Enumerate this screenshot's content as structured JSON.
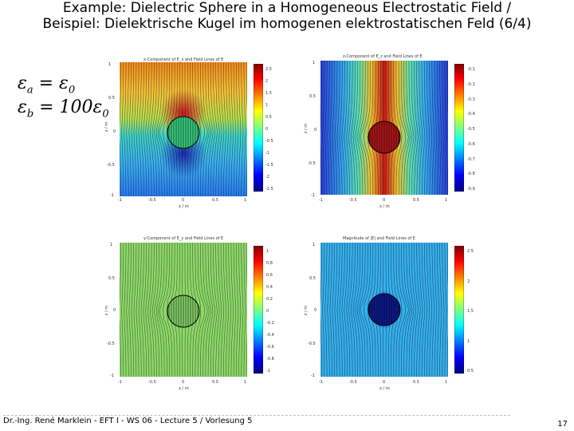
{
  "slide": {
    "title_line1": "Example: Dielectric Sphere in a Homogeneous Electrostatic Field /",
    "title_line2": "Beispiel: Dielektrische Kugel im homogenen elektrostatischen Feld (6/4)",
    "eq_a": "ε",
    "eq_a_sub": "a",
    "eq_a_rhs": " = ε",
    "eq_a_rhs_sub": "0",
    "eq_b": "ε",
    "eq_b_sub": "b",
    "eq_b_rhs": " = 100ε",
    "eq_b_rhs_sub": "0",
    "footer": "Dr.-Ing. René Marklein - EFT I - WS 06 - Lecture 5 / Vorlesung 5",
    "page_number": "17"
  },
  "panels": [
    {
      "id": "tl",
      "title": "x-Component of E_x and Field Lines of E",
      "x_ticks": [
        "-1",
        "-0.5",
        "0",
        "0.5",
        "1"
      ],
      "y_ticks": [
        "1",
        "0.5",
        "0",
        "-0.5",
        "-1"
      ],
      "x_label": "x / m",
      "y_label": "z / m",
      "cbar_ticks": [
        "2.5",
        "2",
        "1.5",
        "1",
        "0.5",
        "0",
        "-0.5",
        "-1",
        "-1.5",
        "-2",
        "-2.5"
      ],
      "colormap": "jet"
    },
    {
      "id": "tr",
      "title": "z-Component of E_z and Field Lines of E",
      "x_ticks": [
        "-1",
        "-0.5",
        "0",
        "0.5",
        "1"
      ],
      "y_ticks": [
        "1",
        "0.5",
        "0",
        "-0.5",
        "-1"
      ],
      "x_label": "x / m",
      "y_label": "z / m",
      "cbar_ticks": [
        "-0.1",
        "-0.2",
        "-0.3",
        "-0.4",
        "-0.5",
        "-0.6",
        "-0.7",
        "-0.8",
        "-0.9"
      ],
      "colormap": "jet"
    },
    {
      "id": "bl",
      "title": "y-Component of E_y and Field Lines of E",
      "x_ticks": [
        "-1",
        "-0.5",
        "0",
        "0.5",
        "1"
      ],
      "y_ticks": [
        "1",
        "0.5",
        "0",
        "-0.5",
        "-1"
      ],
      "x_label": "x / m",
      "y_label": "z / m",
      "cbar_ticks": [
        "1",
        "0.8",
        "0.6",
        "0.4",
        "0.2",
        "0",
        "-0.2",
        "-0.4",
        "-0.6",
        "-0.8",
        "-1"
      ],
      "colormap": "jet"
    },
    {
      "id": "br",
      "title": "Magnitude of |E| and Field Lines of E",
      "x_ticks": [
        "-1",
        "-0.5",
        "0",
        "0.5",
        "1"
      ],
      "y_ticks": [
        "1",
        "0.5",
        "0",
        "-0.5",
        "-1"
      ],
      "x_label": "x / m",
      "y_label": "z / m",
      "cbar_ticks": [
        "2.5",
        "2",
        "1.5",
        "1",
        "0.5"
      ],
      "colormap": "jet"
    }
  ]
}
